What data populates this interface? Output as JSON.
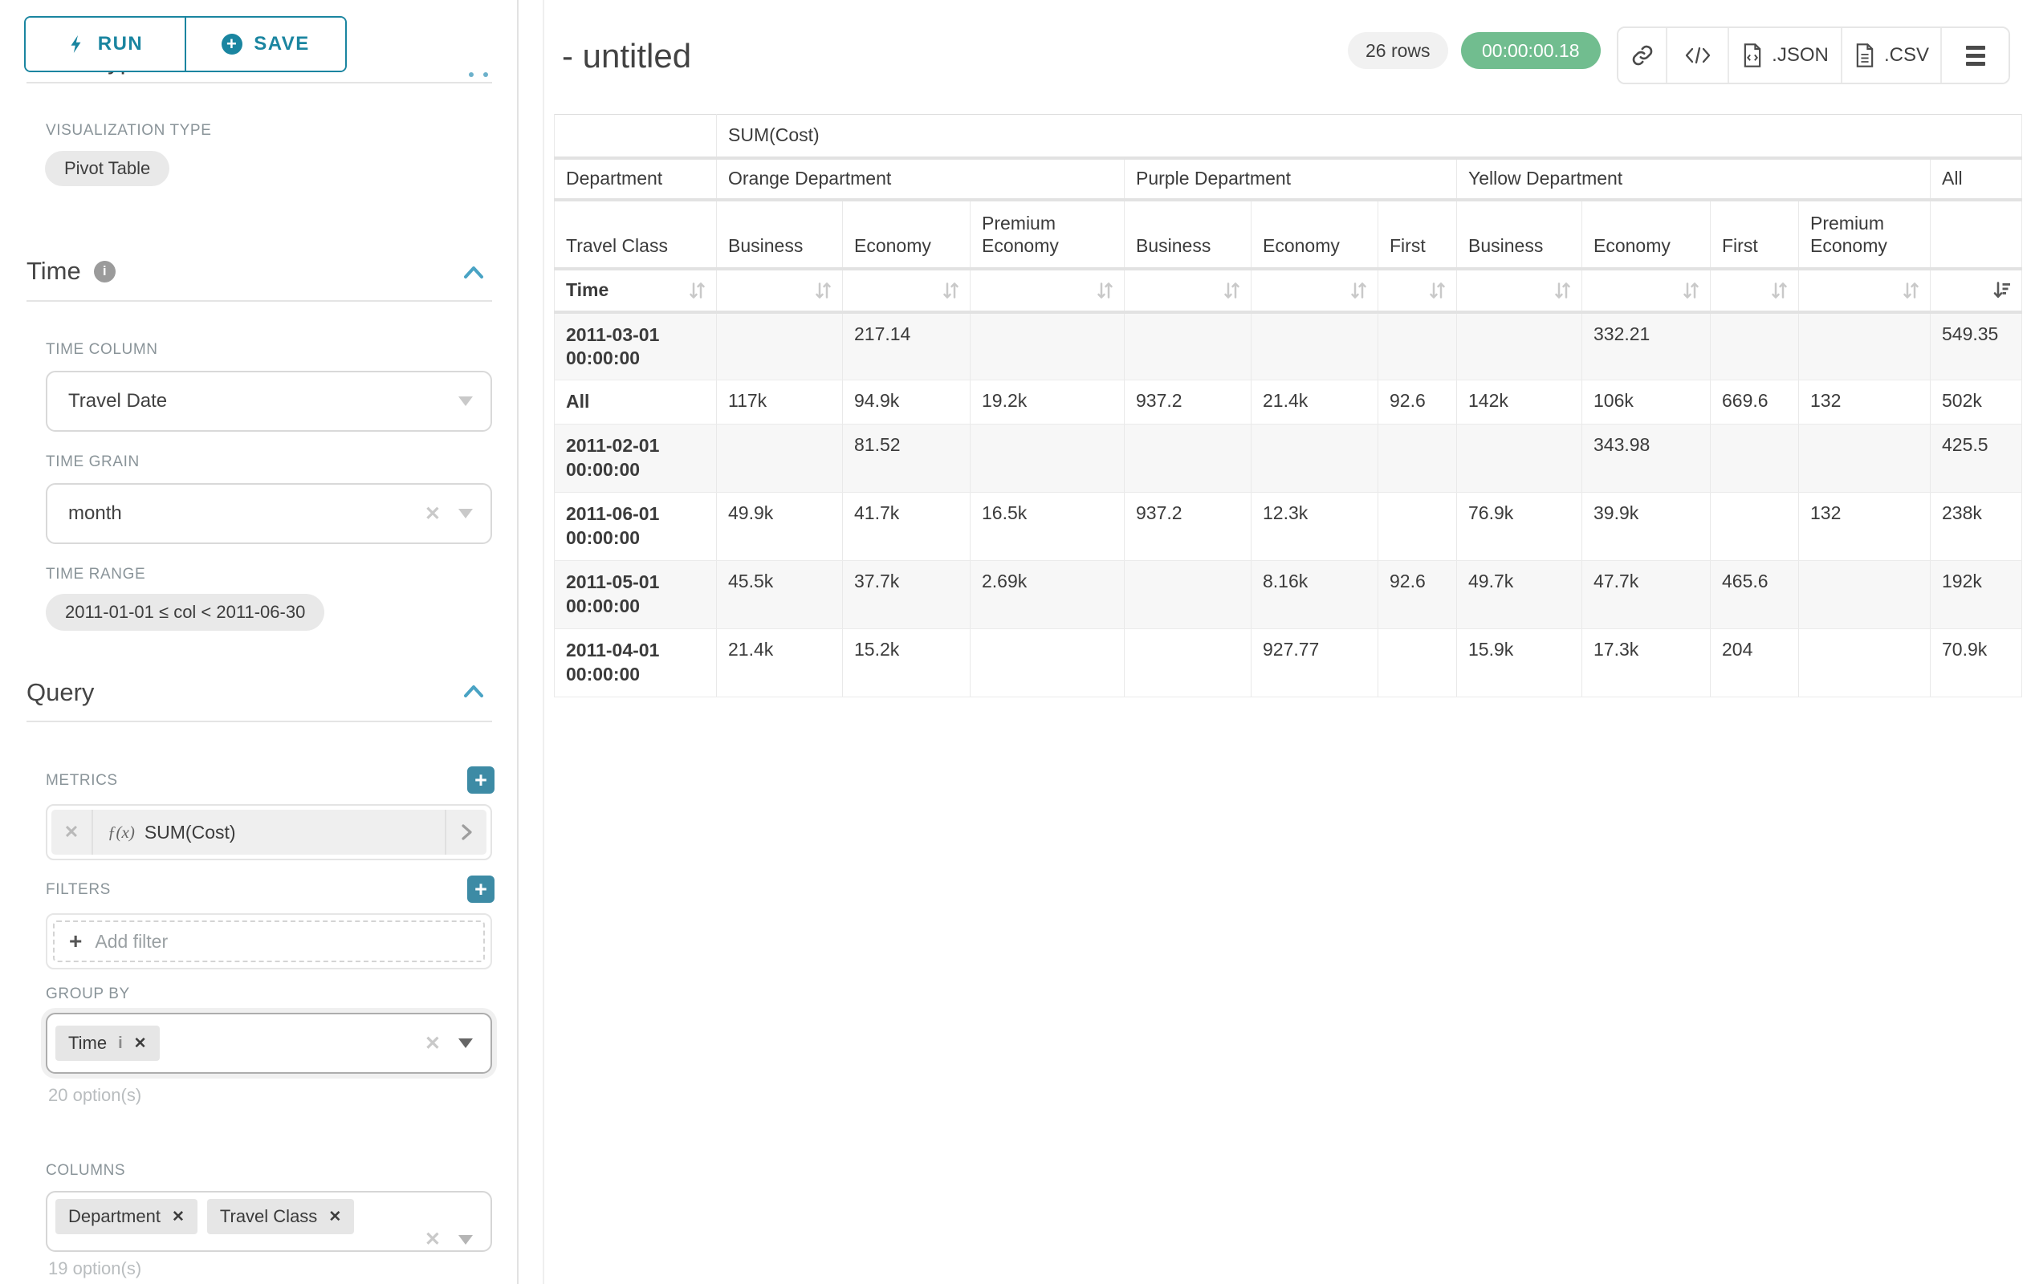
{
  "colors": {
    "accent": "#1a85a0",
    "accent_light": "#49a3c4",
    "plus_button": "#3d8ba5",
    "timer_green": "#71bd8f"
  },
  "toolbar": {
    "run_label": "RUN",
    "save_label": "SAVE"
  },
  "panel": {
    "chart_type_title": "Chart Type",
    "viz_type_label": "VISUALIZATION TYPE",
    "viz_type_value": "Pivot Table",
    "time": {
      "title": "Time",
      "column_label": "TIME COLUMN",
      "column_value": "Travel Date",
      "grain_label": "TIME GRAIN",
      "grain_value": "month",
      "range_label": "TIME RANGE",
      "range_value": "2011-01-01 ≤ col < 2011-06-30"
    },
    "query": {
      "title": "Query",
      "metrics_label": "METRICS",
      "metric_fx": "ƒ(x)",
      "metric_value": "SUM(Cost)",
      "filters_label": "FILTERS",
      "add_filter": "Add filter",
      "group_by_label": "GROUP BY",
      "group_by_items": [
        {
          "label": "Time",
          "has_info": true
        }
      ],
      "group_by_hint": "20 option(s)",
      "columns_label": "COLUMNS",
      "columns_items": [
        {
          "label": "Department",
          "has_info": false
        },
        {
          "label": "Travel Class",
          "has_info": false
        }
      ],
      "columns_hint": "19 option(s)"
    }
  },
  "header": {
    "title": "- untitled",
    "row_count": "26 rows",
    "timer": "00:00:00.18",
    "export_json": ".JSON",
    "export_csv": ".CSV"
  },
  "chart_data": {
    "type": "table",
    "metric_header": "SUM(Cost)",
    "corner": {
      "department": "Department",
      "travel_class": "Travel Class",
      "time": "Time"
    },
    "groups": [
      {
        "label": "Orange Department",
        "cols": [
          "Business",
          "Economy",
          "Premium Economy"
        ]
      },
      {
        "label": "Purple Department",
        "cols": [
          "Business",
          "Economy",
          "First"
        ]
      },
      {
        "label": "Yellow Department",
        "cols": [
          "Business",
          "Economy",
          "First",
          "Premium Economy"
        ]
      },
      {
        "label": "All",
        "cols": [
          ""
        ]
      }
    ],
    "sorted_column": "All",
    "sort_direction": "descending",
    "rows": [
      {
        "label": "2011-03-01 00:00:00",
        "values": [
          "",
          "217.14",
          "",
          "",
          "",
          "",
          "",
          "332.21",
          "",
          "",
          "549.35"
        ]
      },
      {
        "label": "All",
        "values": [
          "117k",
          "94.9k",
          "19.2k",
          "937.2",
          "21.4k",
          "92.6",
          "142k",
          "106k",
          "669.6",
          "132",
          "502k"
        ]
      },
      {
        "label": "2011-02-01 00:00:00",
        "values": [
          "",
          "81.52",
          "",
          "",
          "",
          "",
          "",
          "343.98",
          "",
          "",
          "425.5"
        ]
      },
      {
        "label": "2011-06-01 00:00:00",
        "values": [
          "49.9k",
          "41.7k",
          "16.5k",
          "937.2",
          "12.3k",
          "",
          "76.9k",
          "39.9k",
          "",
          "132",
          "238k"
        ]
      },
      {
        "label": "2011-05-01 00:00:00",
        "values": [
          "45.5k",
          "37.7k",
          "2.69k",
          "",
          "8.16k",
          "92.6",
          "49.7k",
          "47.7k",
          "465.6",
          "",
          "192k"
        ]
      },
      {
        "label": "2011-04-01 00:00:00",
        "values": [
          "21.4k",
          "15.2k",
          "",
          "",
          "927.77",
          "",
          "15.9k",
          "17.3k",
          "204",
          "",
          "70.9k"
        ]
      }
    ]
  }
}
